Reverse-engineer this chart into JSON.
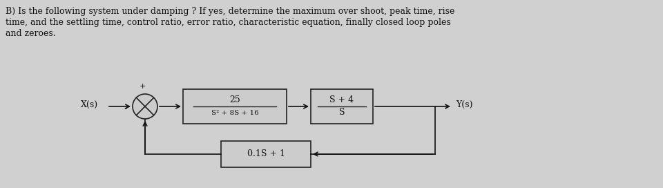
{
  "bg_color": "#d0d0d0",
  "paper_color": "#e8e8e8",
  "title_line1": "B) Is the following system under damping ? If yes, determine the maximum over shoot, peak time, rise",
  "title_line2": "time, and the settling time, control ratio, error ratio, characteristic equation, finally closed loop poles",
  "title_line3": "and zeroes.",
  "xlabel_input": "X(s)",
  "ylabel_output": "Y(s)",
  "block1_top": "25",
  "block1_bot": "S² + 8S + 16",
  "block2_top": "S + 4",
  "block2_bot": "S",
  "block3_text": "0.1S + 1",
  "plus_sign": "+",
  "minus_sign": "-",
  "text_color": "#111111",
  "box_color": "#cccccc",
  "box_edge": "#222222",
  "arrow_color": "#111111",
  "font_size_body": 9,
  "font_size_block": 9,
  "font_size_label": 9
}
